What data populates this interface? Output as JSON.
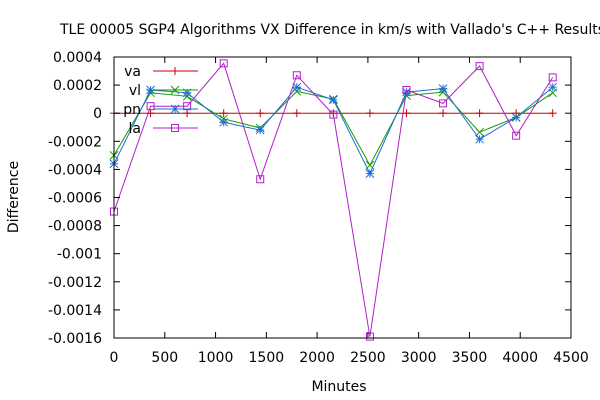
{
  "chart_data": {
    "type": "line",
    "title": "TLE 00005 SGP4 Algorithms VX Difference in km/s with Vallado's C++ Results",
    "xlabel": "Minutes",
    "ylabel": "Difference",
    "xlim": [
      0,
      4500
    ],
    "ylim": [
      -0.0016,
      0.0004
    ],
    "x_ticks": [
      0,
      500,
      1000,
      1500,
      2000,
      2500,
      3000,
      3500,
      4000,
      4500
    ],
    "y_ticks": [
      0.0004,
      0.0002,
      0,
      -0.0002,
      -0.0004,
      -0.0006,
      -0.0008,
      -0.001,
      -0.0012,
      -0.0014,
      -0.0016
    ],
    "x_tick_labels": [
      "0",
      "500",
      "1000",
      "1500",
      "2000",
      "2500",
      "3000",
      "3500",
      "4000",
      "4500"
    ],
    "y_tick_labels": [
      "0.0004",
      "0.0002",
      "0",
      "-0.0002",
      "-0.0004",
      "-0.0006",
      "-0.0008",
      "-0.001",
      "-0.0012",
      "-0.0014",
      "-0.0016"
    ],
    "legend_position": "top-left",
    "grid": false,
    "x": [
      0,
      360,
      720,
      1080,
      1440,
      1800,
      2160,
      2520,
      2880,
      3240,
      3600,
      3960,
      4320
    ],
    "series": [
      {
        "name": "va",
        "color": "#cc0000",
        "marker": "plus",
        "values": [
          0,
          0,
          0,
          0,
          0,
          0,
          0,
          0,
          0,
          0,
          0,
          0,
          0
        ]
      },
      {
        "name": "vl",
        "color": "#1a9900",
        "marker": "cross",
        "values": [
          -0.0003,
          0.000145,
          0.00012,
          -4e-05,
          -0.000105,
          0.000155,
          0.0001,
          -0.00037,
          0.000125,
          0.00015,
          -0.000135,
          -3e-05,
          0.000145
        ]
      },
      {
        "name": "pn",
        "color": "#1a6fd6",
        "marker": "star",
        "values": [
          -0.00036,
          0.000165,
          0.000145,
          -6.5e-05,
          -0.00012,
          0.000185,
          9.5e-05,
          -0.00043,
          0.00015,
          0.000175,
          -0.000185,
          -3e-05,
          0.000185
        ]
      },
      {
        "name": "la",
        "color": "#b020c8",
        "marker": "square",
        "values": [
          -0.0007,
          5e-05,
          5e-05,
          0.000355,
          -0.00047,
          0.00027,
          -1e-05,
          -0.00159,
          0.000165,
          7e-05,
          0.000335,
          -0.00016,
          0.000255
        ]
      }
    ]
  }
}
